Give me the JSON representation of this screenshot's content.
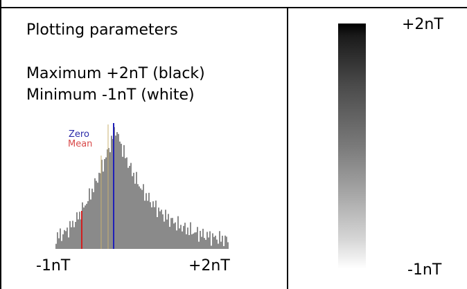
{
  "plot_params": {
    "title": "Plotting parameters",
    "maximum": "Maximum +2nT (black)",
    "minimum": "Minimum -1nT (white)"
  },
  "histogram": {
    "zero_label": "Zero",
    "mean_label": "Mean",
    "min_label": "-1nT",
    "max_label": "+2nT",
    "colors": {
      "bars": "#8a8a8a",
      "zero_line": "#1f1fb8",
      "mean_line": "#d11f1f",
      "zero_text": "#2a2aa8",
      "mean_text": "#d94a4a",
      "guide_lines": "#c8b070"
    }
  },
  "scale": {
    "max_label": "+2nT",
    "min_label": "-1nT",
    "top_color": "#000000",
    "bottom_color": "#ffffff"
  }
}
